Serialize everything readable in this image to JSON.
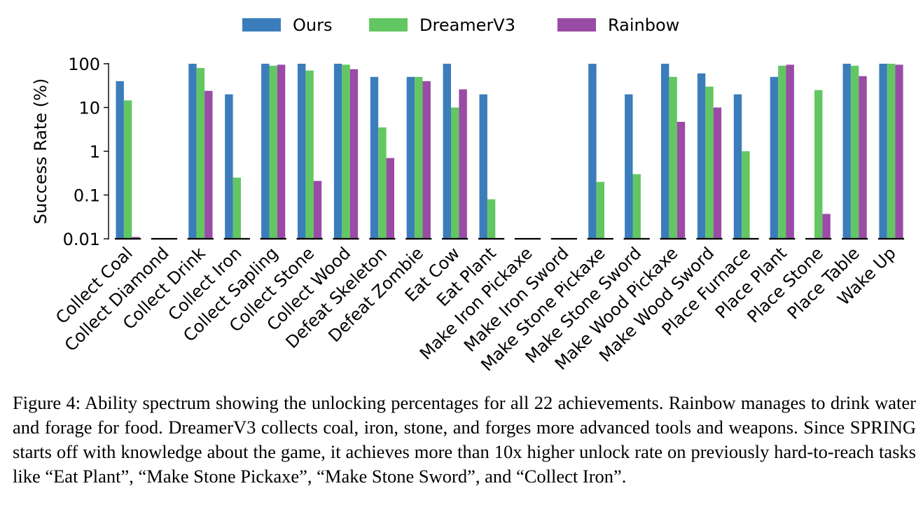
{
  "caption": "Figure 4: Ability spectrum showing the unlocking percentages for all 22 achievements. Rainbow manages to drink water and forage for food. DreamerV3 collects coal, iron, stone, and forges more advanced tools and weapons. Since SPRING starts off with knowledge about the game, it achieves more than 10x higher unlock rate on previously hard-to-reach tasks like “Eat Plant”, “Make Stone Pickaxe”, “Make Stone Sword”, and “Collect Iron”.",
  "chart_data": {
    "type": "bar",
    "ylabel": "Success Rate (%)",
    "xlabel": "",
    "yscale": "log",
    "ylim": [
      0.01,
      100
    ],
    "yticks": [
      0.01,
      0.1,
      1,
      10,
      100
    ],
    "ytick_labels": [
      "0.01",
      "0.1",
      "1",
      "10",
      "100"
    ],
    "legend_position": "top-center",
    "grid": false,
    "categories": [
      "Collect Coal",
      "Collect Diamond",
      "Collect Drink",
      "Collect Iron",
      "Collect Sapling",
      "Collect Stone",
      "Collect Wood",
      "Defeat Skeleton",
      "Defeat Zombie",
      "Eat Cow",
      "Eat Plant",
      "Make Iron Pickaxe",
      "Make Iron Sword",
      "Make Stone Pickaxe",
      "Make Stone Sword",
      "Make Wood Pickaxe",
      "Make Wood Sword",
      "Place Furnace",
      "Place Plant",
      "Place Stone",
      "Place Table",
      "Wake Up"
    ],
    "series": [
      {
        "name": "Ours",
        "color": "#3b7dbb",
        "values": [
          40,
          0,
          100,
          20,
          100,
          100,
          100,
          50,
          50,
          100,
          20,
          0,
          0,
          100,
          20,
          100,
          60,
          20,
          50,
          0,
          100,
          100
        ]
      },
      {
        "name": "DreamerV3",
        "color": "#62c762",
        "values": [
          14.5,
          0,
          80,
          0.25,
          90,
          70,
          95,
          3.5,
          50,
          10,
          0.08,
          0,
          0,
          0.2,
          0.3,
          50,
          30,
          1,
          90,
          25,
          90,
          100
        ]
      },
      {
        "name": "Rainbow",
        "color": "#9a4ba6",
        "values": [
          0.011,
          0,
          24,
          0,
          95,
          0.21,
          75,
          0.7,
          40,
          26,
          0,
          0,
          0,
          0,
          0,
          4.7,
          10,
          0,
          95,
          0.037,
          52,
          95
        ]
      }
    ]
  }
}
